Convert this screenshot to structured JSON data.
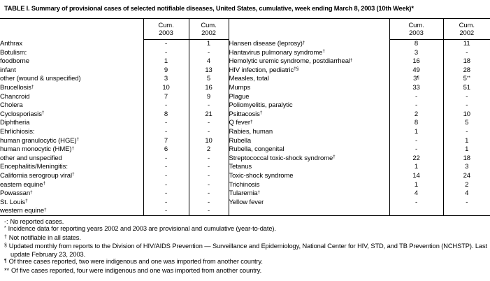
{
  "title": "TABLE I. Summary of provisional cases of selected notifiable diseases, United States, cumulative, week ending March 8, 2003 (10th Week)*",
  "header": {
    "cum_label": "Cum.",
    "year_2003": "2003",
    "year_2002": "2002"
  },
  "left_rows": [
    {
      "label": "Anthrax",
      "c2003": "-",
      "c2002": "1"
    },
    {
      "label": "Botulism:",
      "c2003": "-",
      "c2002": "-"
    },
    {
      "label": "foodborne",
      "indent": true,
      "c2003": "1",
      "c2002": "4"
    },
    {
      "label": "infant",
      "indent": true,
      "c2003": "9",
      "c2002": "13"
    },
    {
      "label": "other (wound & unspecified)",
      "indent": true,
      "c2003": "3",
      "c2002": "5"
    },
    {
      "label": "Brucellosis",
      "sup": "†",
      "c2003": "10",
      "c2002": "16"
    },
    {
      "label": "Chancroid",
      "c2003": "7",
      "c2002": "9"
    },
    {
      "label": "Cholera",
      "c2003": "-",
      "c2002": "-"
    },
    {
      "label": "Cyclosporiasis",
      "sup": "†",
      "c2003": "8",
      "c2002": "21"
    },
    {
      "label": "Diphtheria",
      "c2003": "-",
      "c2002": "-"
    },
    {
      "label": "Ehrlichiosis:",
      "c2003": "-",
      "c2002": "-"
    },
    {
      "label": "human granulocytic (HGE)",
      "sup": "†",
      "indent": true,
      "c2003": "7",
      "c2002": "10"
    },
    {
      "label": "human monocytic (HME)",
      "sup": "†",
      "indent": true,
      "c2003": "6",
      "c2002": "2"
    },
    {
      "label": "other and unspecified",
      "indent": true,
      "c2003": "-",
      "c2002": "-"
    },
    {
      "label": "Encephalitis/Meningitis:",
      "c2003": "-",
      "c2002": "-"
    },
    {
      "label": "California serogroup viral",
      "sup": "†",
      "indent": true,
      "c2003": "-",
      "c2002": "-"
    },
    {
      "label": "eastern equine",
      "sup": "†",
      "indent": true,
      "c2003": "-",
      "c2002": "-"
    },
    {
      "label": "Powassan",
      "sup": "†",
      "indent": true,
      "c2003": "-",
      "c2002": "-"
    },
    {
      "label": "St. Louis",
      "sup": "†",
      "indent": true,
      "c2003": "-",
      "c2002": "-"
    },
    {
      "label": "western equine",
      "sup": "†",
      "indent": true,
      "c2003": "-",
      "c2002": "-"
    }
  ],
  "right_rows": [
    {
      "label": "Hansen disease (leprosy)",
      "sup": "†",
      "c2003": "8",
      "c2002": "11"
    },
    {
      "label": "Hantavirus pulmonary syndrome",
      "sup": "†",
      "c2003": "3",
      "c2002": "-"
    },
    {
      "label": "Hemolytic uremic syndrome, postdiarrheal",
      "sup": "†",
      "c2003": "16",
      "c2002": "18"
    },
    {
      "label": "HIV infection, pediatric",
      "sup": "†§",
      "c2003": "49",
      "c2002": "28"
    },
    {
      "label": "Measles, total",
      "c2003": "3",
      "c2003_sup": "¶",
      "c2002": "5",
      "c2002_sup": "**"
    },
    {
      "label": "Mumps",
      "c2003": "33",
      "c2002": "51"
    },
    {
      "label": "Plague",
      "c2003": "-",
      "c2002": "-"
    },
    {
      "label": "Poliomyelitis, paralytic",
      "c2003": "-",
      "c2002": "-"
    },
    {
      "label": "Psittacosis",
      "sup": "†",
      "c2003": "2",
      "c2002": "10"
    },
    {
      "label": "Q fever",
      "sup": "†",
      "c2003": "8",
      "c2002": "5"
    },
    {
      "label": "Rabies, human",
      "c2003": "1",
      "c2002": "-"
    },
    {
      "label": "Rubella",
      "c2003": "-",
      "c2002": "1"
    },
    {
      "label": "Rubella, congenital",
      "c2003": "-",
      "c2002": "1"
    },
    {
      "label": "Streptococcal toxic-shock syndrome",
      "sup": "†",
      "c2003": "22",
      "c2002": "18"
    },
    {
      "label": "Tetanus",
      "c2003": "1",
      "c2002": "3"
    },
    {
      "label": "Toxic-shock syndrome",
      "c2003": "14",
      "c2002": "24"
    },
    {
      "label": "Trichinosis",
      "c2003": "1",
      "c2002": "2"
    },
    {
      "label": "Tularemia",
      "sup": "†",
      "c2003": "4",
      "c2002": "4"
    },
    {
      "label": "Yellow fever",
      "c2003": "-",
      "c2002": "-"
    }
  ],
  "footnotes": [
    {
      "marker": "-:",
      "sup": false,
      "text": "No reported cases."
    },
    {
      "marker": "*",
      "sup": true,
      "text": "Incidence data for reporting years 2002 and 2003 are provisional and cumulative (year-to-date)."
    },
    {
      "marker": "†",
      "sup": true,
      "text": "Not notifiable in all states."
    },
    {
      "marker": "§",
      "sup": true,
      "text": "Updated monthly from reports to the Division of HIV/AIDS Prevention — Surveillance and Epidemiology, National Center for HIV, STD, and TB Prevention (NCHSTP). Last update February 23, 2003."
    },
    {
      "marker": "¶",
      "sup": true,
      "text": "Of three cases reported, two were indigenous and one was imported from another country."
    },
    {
      "marker": "**",
      "sup": false,
      "text": "Of five cases reported, four were indigenous and one was imported from another country."
    }
  ]
}
